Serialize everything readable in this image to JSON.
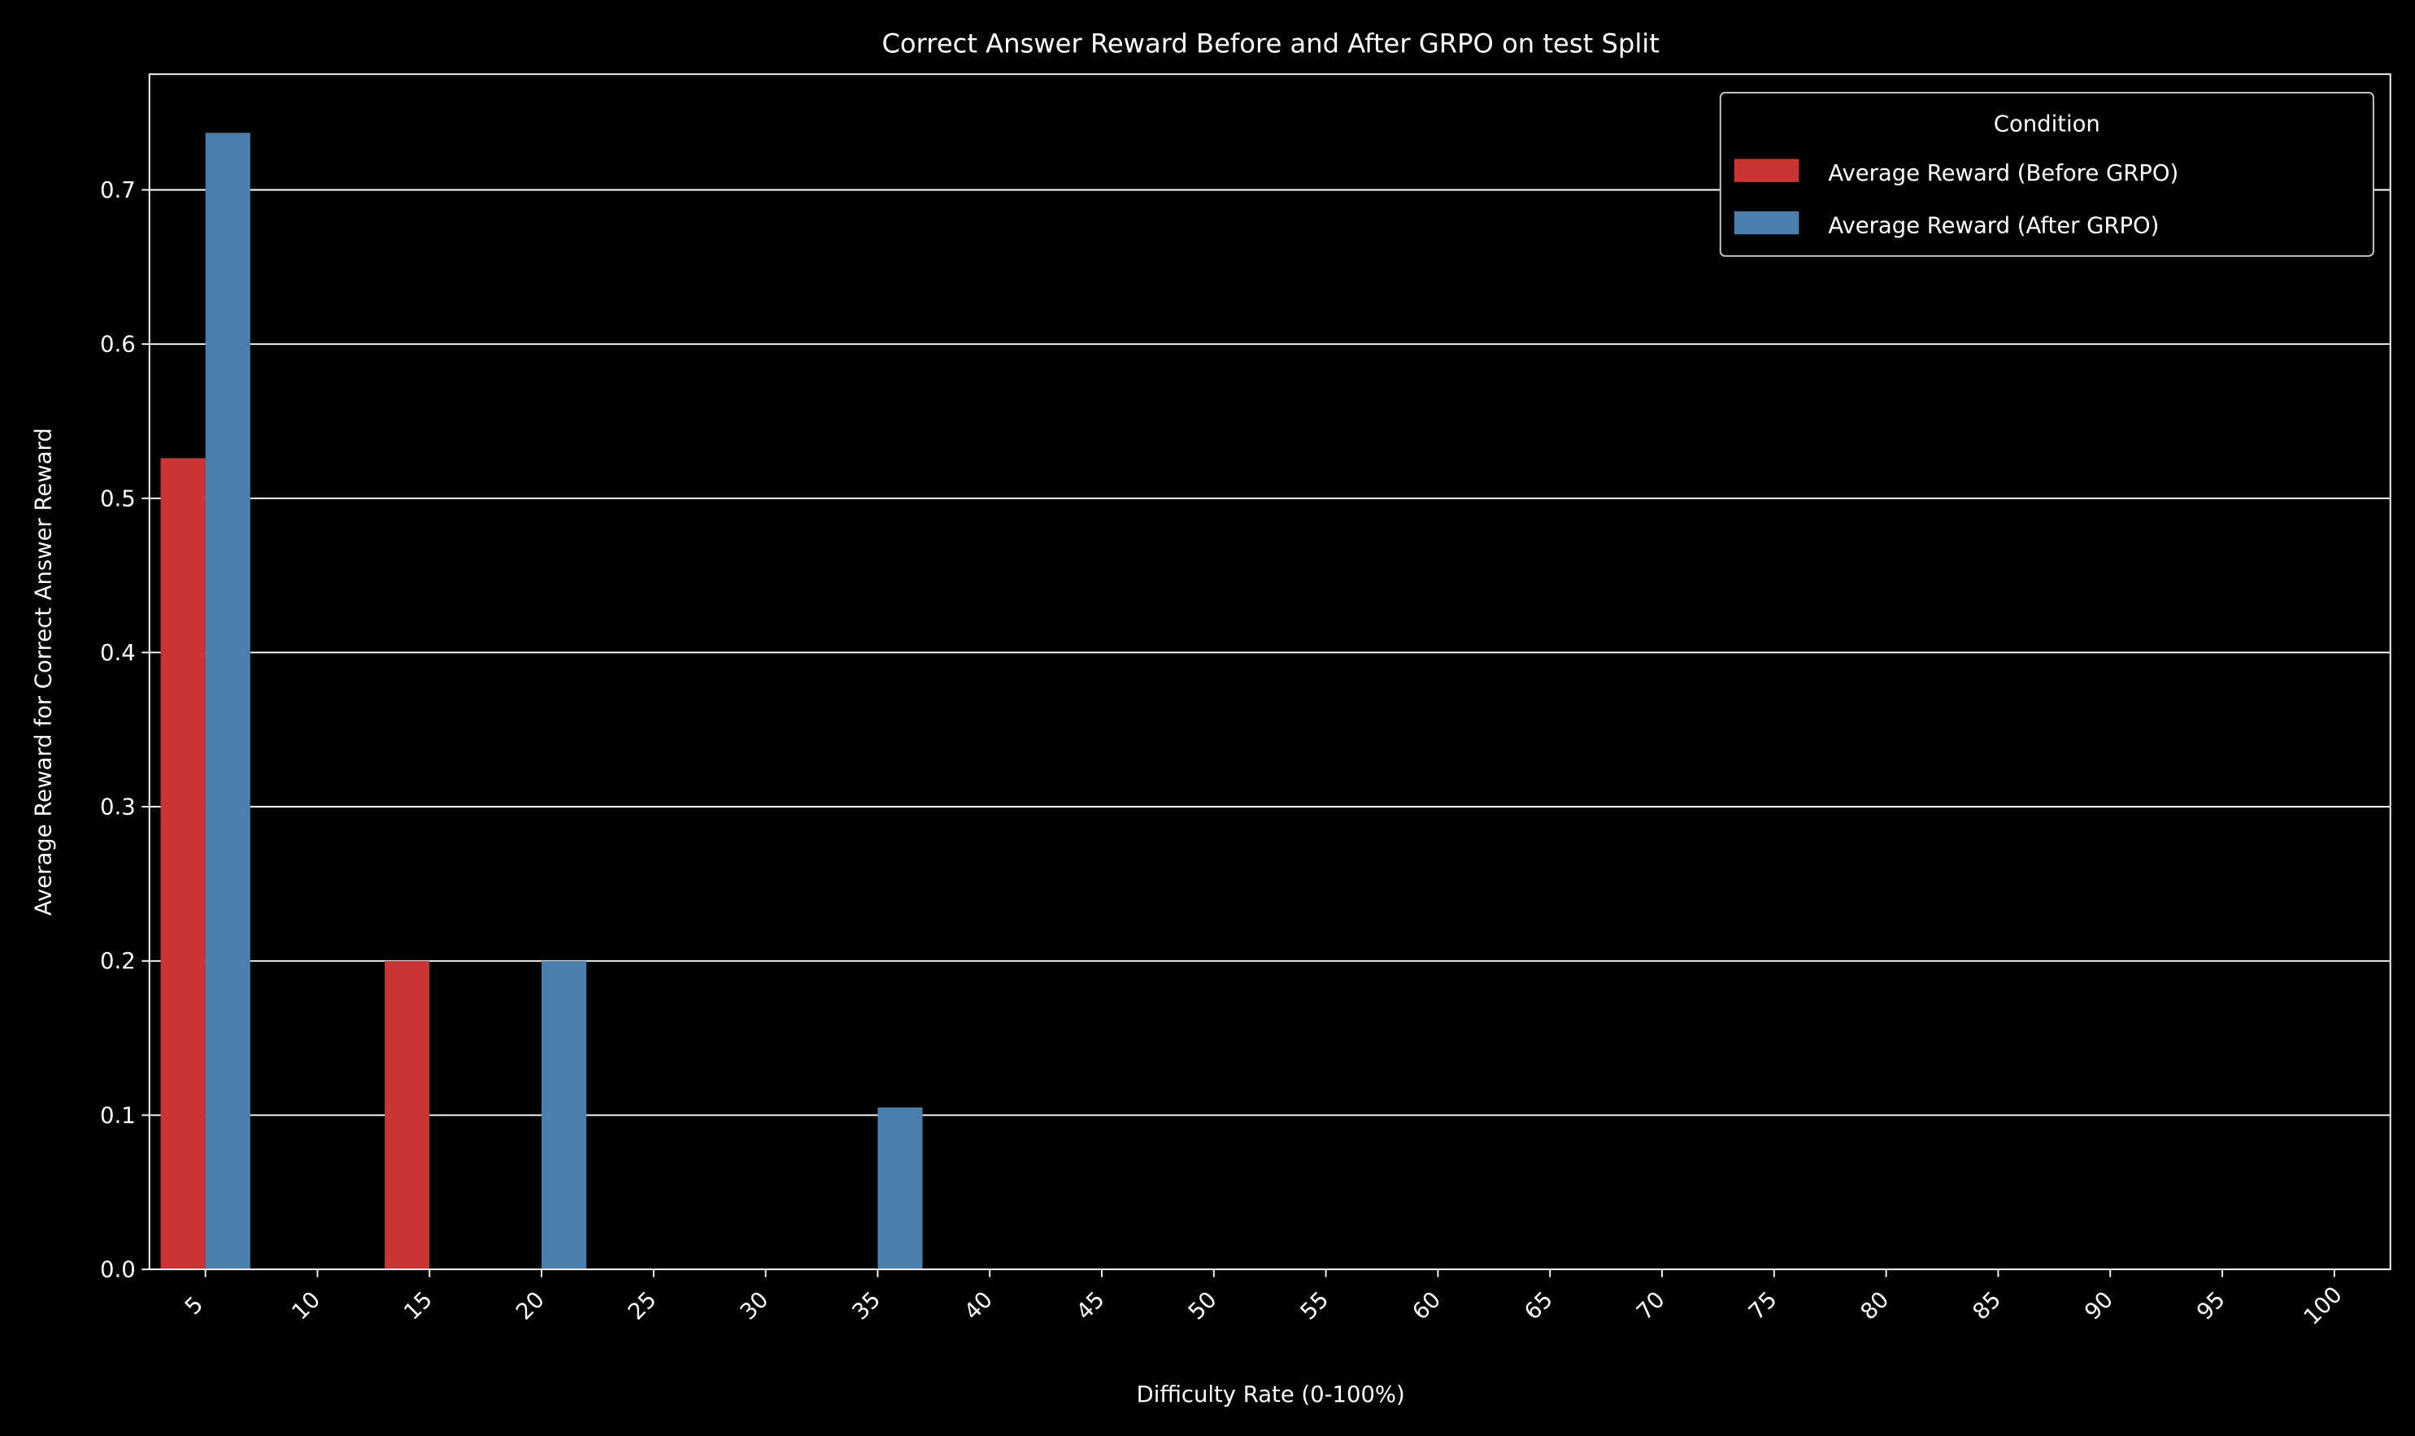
{
  "chart_data": {
    "type": "bar",
    "title": "Correct Answer Reward Before and After GRPO on test Split",
    "xlabel": "Difficulty Rate (0-100%)",
    "ylabel": "Average Reward for Correct Answer Reward",
    "categories": [
      "5",
      "10",
      "15",
      "20",
      "25",
      "30",
      "35",
      "40",
      "45",
      "50",
      "55",
      "60",
      "65",
      "70",
      "75",
      "80",
      "85",
      "90",
      "95",
      "100"
    ],
    "series": [
      {
        "name": "Average Reward (Before GRPO)",
        "color": "#cc3333",
        "values": [
          0.526,
          0,
          0.2,
          0,
          0,
          0,
          0,
          0,
          0,
          0,
          0,
          0,
          0,
          0,
          0,
          0,
          0,
          0,
          0,
          0
        ]
      },
      {
        "name": "Average Reward (After GRPO)",
        "color": "#4a7fac",
        "values": [
          0.737,
          0,
          0,
          0.2,
          0,
          0,
          0.105,
          0,
          0,
          0,
          0,
          0,
          0,
          0,
          0,
          0,
          0,
          0,
          0,
          0
        ]
      }
    ],
    "ylim": [
      0,
      0.775
    ],
    "yticks": [
      "0.0",
      "0.1",
      "0.2",
      "0.3",
      "0.4",
      "0.5",
      "0.6",
      "0.7"
    ],
    "grid": "horizontal",
    "legend": {
      "title": "Condition",
      "placement": "top-right"
    },
    "background": "#000000",
    "foreground": "#ffffff"
  }
}
